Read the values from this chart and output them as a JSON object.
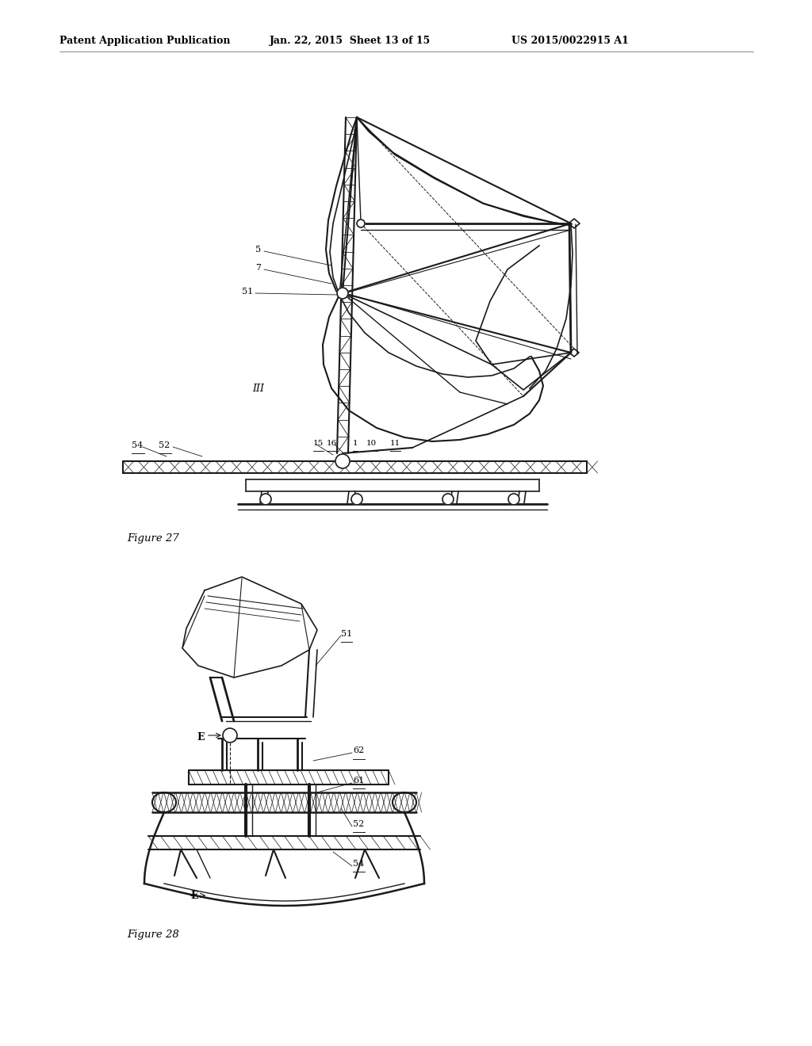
{
  "bg_color": "#ffffff",
  "text_color": "#000000",
  "line_color": "#1a1a1a",
  "header_text": "Patent Application Publication",
  "header_date": "Jan. 22, 2015  Sheet 13 of 15",
  "header_patent": "US 2015/0022915 A1",
  "fig27_label": "Figure 27",
  "fig28_label": "Figure 28"
}
